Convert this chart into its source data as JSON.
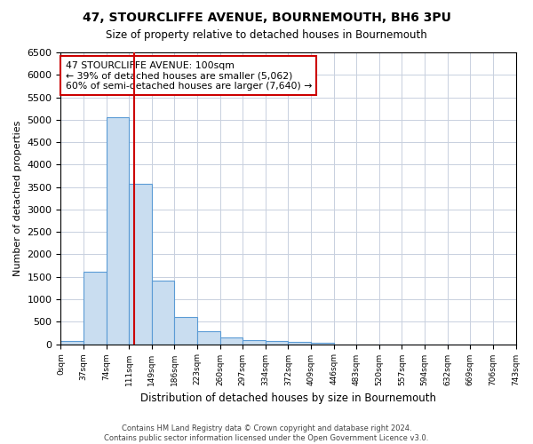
{
  "title": "47, STOURCLIFFE AVENUE, BOURNEMOUTH, BH6 3PU",
  "subtitle": "Size of property relative to detached houses in Bournemouth",
  "xlabel": "Distribution of detached houses by size in Bournemouth",
  "ylabel": "Number of detached properties",
  "footer_line1": "Contains HM Land Registry data © Crown copyright and database right 2024.",
  "footer_line2": "Contains public sector information licensed under the Open Government Licence v3.0.",
  "bar_color": "#c9ddf0",
  "bar_edgecolor": "#5b9bd5",
  "grid_color": "#c8d0de",
  "vline_color": "#cc0000",
  "vline_x": 2.72,
  "annotation_text": "47 STOURCLIFFE AVENUE: 100sqm\n← 39% of detached houses are smaller (5,062)\n60% of semi-detached houses are larger (7,640) →",
  "annotation_box_edgecolor": "#cc0000",
  "ylim": [
    0,
    6500
  ],
  "yticks": [
    0,
    500,
    1000,
    1500,
    2000,
    2500,
    3000,
    3500,
    4000,
    4500,
    5000,
    5500,
    6000,
    6500
  ],
  "bin_labels": [
    "0sqm",
    "37sqm",
    "74sqm",
    "111sqm",
    "149sqm",
    "186sqm",
    "223sqm",
    "260sqm",
    "297sqm",
    "334sqm",
    "372sqm",
    "409sqm",
    "446sqm",
    "483sqm",
    "520sqm",
    "557sqm",
    "594sqm",
    "632sqm",
    "669sqm",
    "706sqm",
    "743sqm"
  ],
  "bar_heights": [
    75,
    1620,
    5060,
    3570,
    1410,
    610,
    290,
    140,
    95,
    70,
    45,
    35,
    0,
    0,
    0,
    0,
    0,
    0,
    0,
    0
  ],
  "n_bars": 20
}
